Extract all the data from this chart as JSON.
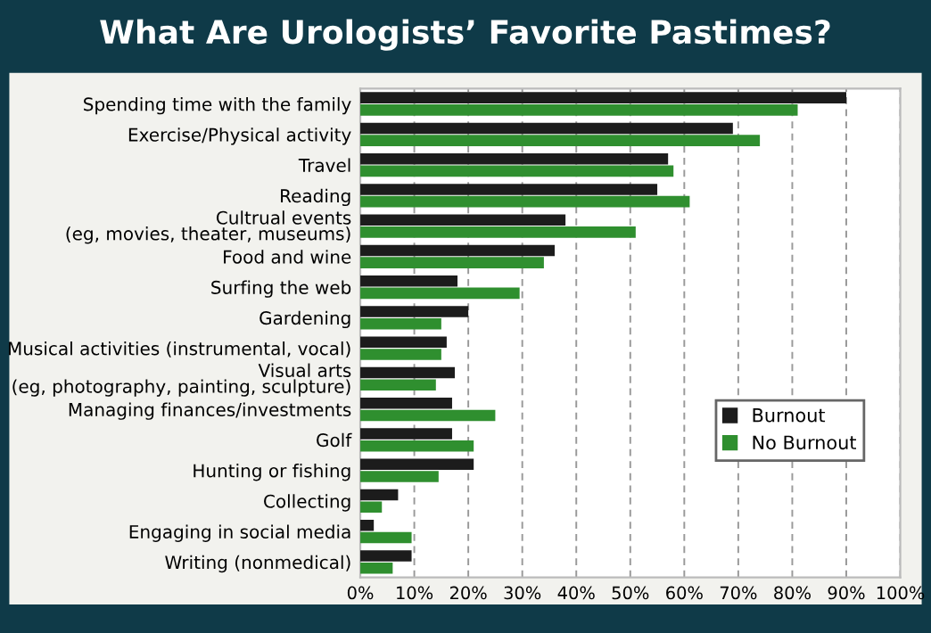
{
  "chart_data": {
    "type": "bar",
    "orientation": "horizontal",
    "title": "What Are Urologists’ Favorite Pastimes?",
    "categories": [
      "Spending time with the family",
      "Exercise/Physical activity",
      "Travel",
      "Reading",
      "Cultrual events\n(eg, movies, theater, museums)",
      "Food and wine",
      "Surfing the web",
      "Gardening",
      "Musical activities (instrumental, vocal)",
      "Visual arts\n(eg, photography, painting, sculpture)",
      "Managing finances/investments",
      "Golf",
      "Hunting or fishing",
      "Collecting",
      "Engaging in social media",
      "Writing (nonmedical)"
    ],
    "series": [
      {
        "name": "Burnout",
        "color": "#1c1c1c",
        "values": [
          90,
          69,
          57,
          55,
          38,
          36,
          18,
          20,
          16,
          17.5,
          17,
          17,
          21,
          7,
          2.5,
          9.5
        ]
      },
      {
        "name": "No Burnout",
        "color": "#2f8f2f",
        "values": [
          81,
          74,
          58,
          61,
          51,
          34,
          29.5,
          15,
          15,
          14,
          25,
          21,
          14.5,
          4,
          9.5,
          6
        ]
      }
    ],
    "xlim": [
      0,
      100
    ],
    "xticks": [
      {
        "value": 0,
        "label": "0%"
      },
      {
        "value": 10,
        "label": "10%"
      },
      {
        "value": 20,
        "label": "20%"
      },
      {
        "value": 30,
        "label": "30%"
      },
      {
        "value": 40,
        "label": "40%"
      },
      {
        "value": 50,
        "label": "50%"
      },
      {
        "value": 60,
        "label": "60%"
      },
      {
        "value": 70,
        "label": "70%"
      },
      {
        "value": 80,
        "label": "80%"
      },
      {
        "value": 90,
        "label": "90%"
      },
      {
        "value": 100,
        "label": "100%"
      }
    ],
    "grid": "x",
    "legend": "bottom right"
  }
}
